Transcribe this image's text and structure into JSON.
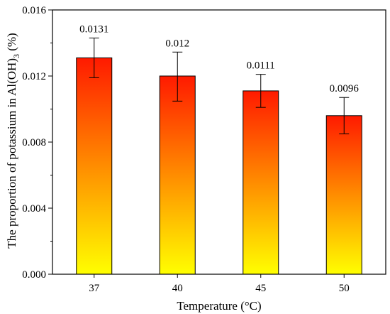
{
  "chart_data": {
    "type": "bar",
    "categories": [
      "37",
      "40",
      "45",
      "50"
    ],
    "values": [
      0.0131,
      0.012,
      0.0111,
      0.0096
    ],
    "errors_upper": [
      0.0143,
      0.01345,
      0.0121,
      0.0107
    ],
    "errors_lower": [
      0.0119,
      0.01048,
      0.0101,
      0.0085
    ],
    "data_labels": [
      "0.0131",
      "0.012",
      "0.0111",
      "0.0096"
    ],
    "xlabel": "Temperature (°C)",
    "ylabel": {
      "prefix": "The proportion of potassium in Al(OH)",
      "subscript": "3",
      "suffix": " (%)"
    },
    "ylim": [
      0,
      0.016
    ],
    "yticks": [
      "0.000",
      "0.004",
      "0.008",
      "0.012",
      "0.016"
    ],
    "ytick_values": [
      0,
      0.004,
      0.008,
      0.012,
      0.016
    ],
    "grid": false,
    "legend": "none",
    "colors": {
      "bar_top": "#ff1a00",
      "bar_bottom": "#ffff00",
      "outline": "#000000"
    }
  }
}
